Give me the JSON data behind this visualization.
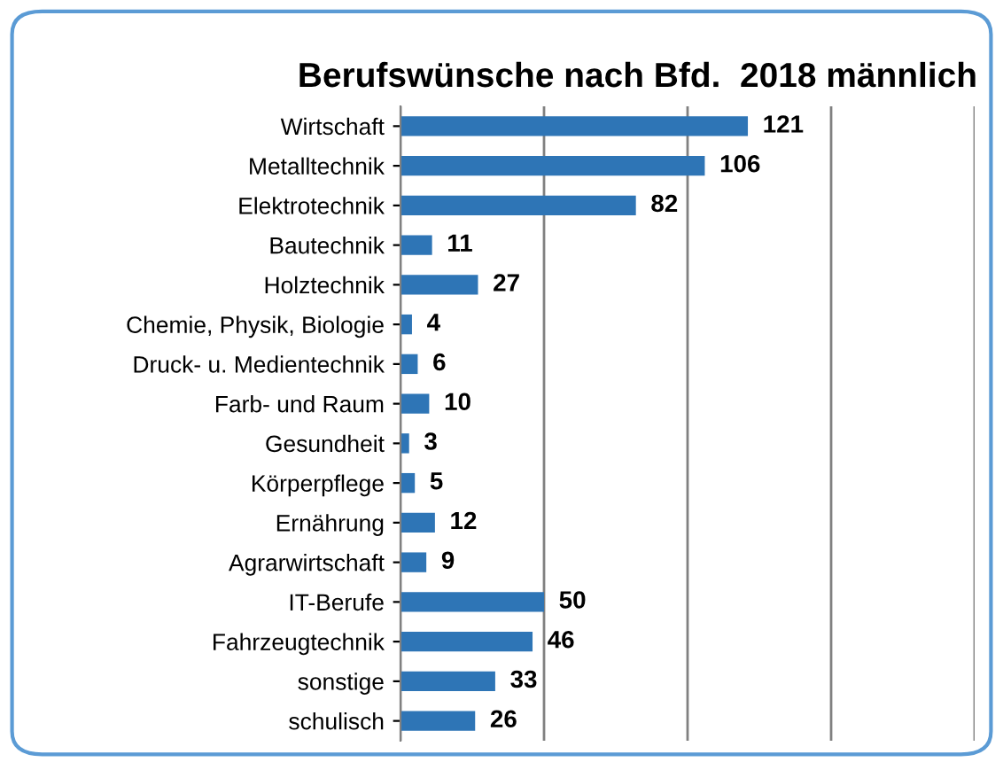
{
  "chart_data": {
    "type": "bar",
    "orientation": "horizontal",
    "title": "Berufswünsche nach Bfd.  2018 männlich",
    "categories": [
      "Wirtschaft",
      "Metalltechnik",
      "Elektrotechnik",
      "Bautechnik",
      "Holztechnik",
      "Chemie, Physik, Biologie",
      "Druck- u. Medientechnik",
      "Farb- und Raum",
      "Gesundheit",
      "Körperpflege",
      "Ernährung",
      "Agrarwirtschaft",
      "IT-Berufe",
      "Fahrzeugtechnik",
      "sonstige",
      "schulisch"
    ],
    "values": [
      121,
      106,
      82,
      11,
      27,
      4,
      6,
      10,
      3,
      5,
      12,
      9,
      50,
      46,
      33,
      26
    ],
    "color": "#2e75b6",
    "data_labels": true,
    "grid": "x",
    "legend": false,
    "tick_labels": "y",
    "xlim": [
      0,
      200
    ],
    "xticks": [
      {
        "value": 0,
        "label": null
      },
      {
        "value": 50,
        "label": null
      },
      {
        "value": 100,
        "label": null
      },
      {
        "value": 150,
        "label": null
      },
      {
        "value": 200,
        "label": null
      }
    ]
  }
}
